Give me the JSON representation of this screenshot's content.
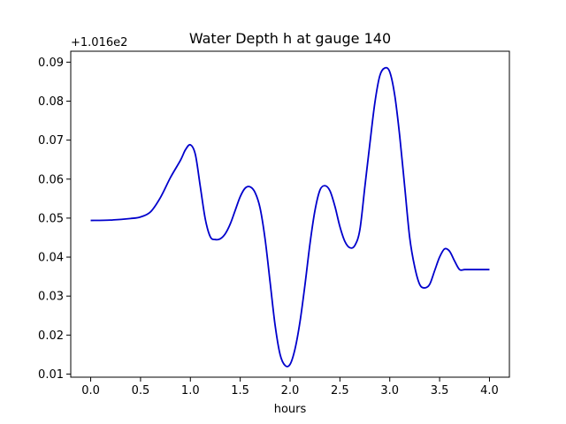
{
  "chart_data": {
    "type": "line",
    "title": "Water Depth h at gauge 140",
    "xlabel": "hours",
    "ylabel": "",
    "y_offset_label": "+1.016e2",
    "xlim": [
      -0.2,
      4.2
    ],
    "ylim": [
      0.0092,
      0.0928
    ],
    "x_ticks": [
      0.0,
      0.5,
      1.0,
      1.5,
      2.0,
      2.5,
      3.0,
      3.5,
      4.0
    ],
    "x_tick_labels": [
      "0.0",
      "0.5",
      "1.0",
      "1.5",
      "2.0",
      "2.5",
      "3.0",
      "3.5",
      "4.0"
    ],
    "y_ticks": [
      0.01,
      0.02,
      0.03,
      0.04,
      0.05,
      0.06,
      0.07,
      0.08,
      0.09
    ],
    "y_tick_labels": [
      "0.01",
      "0.02",
      "0.03",
      "0.04",
      "0.05",
      "0.06",
      "0.07",
      "0.08",
      "0.09"
    ],
    "grid": false,
    "series": [
      {
        "color": "#0000cc",
        "x": [
          0.0,
          0.2,
          0.4,
          0.5,
          0.6,
          0.7,
          0.8,
          0.9,
          0.95,
          1.0,
          1.05,
          1.1,
          1.15,
          1.2,
          1.25,
          1.3,
          1.35,
          1.4,
          1.45,
          1.5,
          1.55,
          1.6,
          1.65,
          1.7,
          1.75,
          1.8,
          1.85,
          1.9,
          1.95,
          2.0,
          2.05,
          2.1,
          2.15,
          2.2,
          2.25,
          2.3,
          2.35,
          2.4,
          2.45,
          2.5,
          2.55,
          2.6,
          2.65,
          2.7,
          2.75,
          2.8,
          2.85,
          2.9,
          2.95,
          3.0,
          3.05,
          3.1,
          3.15,
          3.2,
          3.25,
          3.3,
          3.35,
          3.4,
          3.45,
          3.5,
          3.55,
          3.6,
          3.65,
          3.7,
          3.75,
          3.8,
          3.85,
          3.9,
          3.95,
          4.0
        ],
        "y": [
          0.0494,
          0.0495,
          0.0499,
          0.0503,
          0.0516,
          0.0553,
          0.0604,
          0.0648,
          0.0675,
          0.0688,
          0.0663,
          0.058,
          0.0497,
          0.0452,
          0.0445,
          0.0447,
          0.046,
          0.0485,
          0.052,
          0.0555,
          0.0577,
          0.058,
          0.0565,
          0.0525,
          0.0445,
          0.0335,
          0.0225,
          0.015,
          0.0122,
          0.0125,
          0.0165,
          0.0235,
          0.033,
          0.0435,
          0.052,
          0.0572,
          0.0583,
          0.057,
          0.053,
          0.0478,
          0.044,
          0.0424,
          0.043,
          0.047,
          0.058,
          0.069,
          0.0795,
          0.0865,
          0.0885,
          0.0875,
          0.0815,
          0.071,
          0.058,
          0.045,
          0.0375,
          0.033,
          0.0321,
          0.033,
          0.0365,
          0.04,
          0.0421,
          0.0415,
          0.039,
          0.0368,
          0.0368,
          0.0368,
          0.0368,
          0.0368,
          0.0368,
          0.0368
        ]
      }
    ]
  }
}
